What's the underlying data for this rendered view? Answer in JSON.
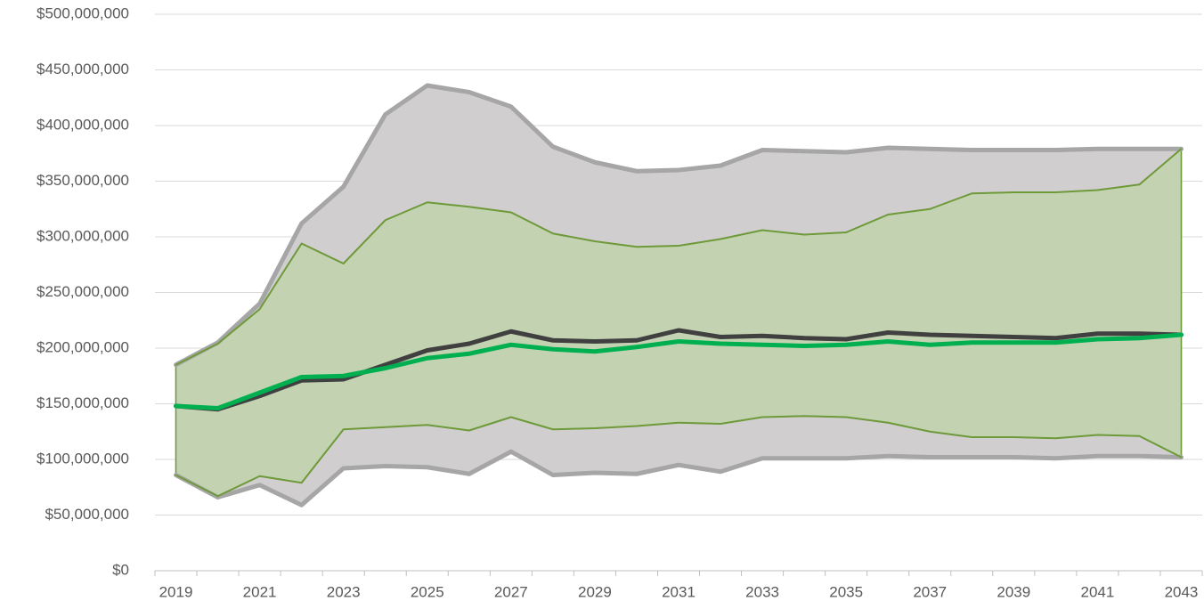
{
  "chart_data": {
    "type": "line",
    "categories": [
      "2019",
      null,
      "2021",
      null,
      "2023",
      null,
      "2025",
      null,
      "2027",
      null,
      "2029",
      null,
      "2031",
      null,
      "2033",
      null,
      "2035",
      null,
      "2037",
      null,
      "2039",
      null,
      "2041",
      null,
      "2043"
    ],
    "ylim": [
      0,
      500000000
    ],
    "yticks": [
      {
        "value": 0,
        "label": "$0"
      },
      {
        "value": 50000000,
        "label": "$50,000,000"
      },
      {
        "value": 100000000,
        "label": "$100,000,000"
      },
      {
        "value": 150000000,
        "label": "$150,000,000"
      },
      {
        "value": 200000000,
        "label": "$200,000,000"
      },
      {
        "value": 250000000,
        "label": "$250,000,000"
      },
      {
        "value": 300000000,
        "label": "$300,000,000"
      },
      {
        "value": 350000000,
        "label": "$350,000,000"
      },
      {
        "value": 400000000,
        "label": "$400,000,000"
      },
      {
        "value": 450000000,
        "label": "$450,000,000"
      },
      {
        "value": 500000000,
        "label": "$500,000,000"
      }
    ],
    "grid": true,
    "fills": [
      "#d0cecf",
      "#c3d3b2"
    ],
    "series": [
      {
        "color": "#a6a6a6",
        "width": 5,
        "values": [
          185000000,
          205000000,
          240000000,
          312000000,
          345000000,
          410000000,
          436000000,
          430000000,
          417000000,
          381000000,
          367000000,
          359000000,
          360000000,
          364000000,
          378000000,
          377000000,
          376000000,
          380000000,
          379000000,
          378000000,
          378000000,
          378000000,
          379000000,
          379000000,
          379000000
        ]
      },
      {
        "color": "#a6a6a6",
        "width": 5,
        "values": [
          86000000,
          66000000,
          77000000,
          59000000,
          92000000,
          94000000,
          93000000,
          87000000,
          107000000,
          86000000,
          88000000,
          87000000,
          95000000,
          89000000,
          101000000,
          101000000,
          101000000,
          103000000,
          102000000,
          102000000,
          102000000,
          101000000,
          103000000,
          103000000,
          102000000
        ]
      },
      {
        "color": "#6f9a3a",
        "width": 2,
        "values": [
          185000000,
          204000000,
          235000000,
          294000000,
          276000000,
          315000000,
          331000000,
          327000000,
          322000000,
          303000000,
          296000000,
          291000000,
          292000000,
          298000000,
          306000000,
          302000000,
          304000000,
          320000000,
          325000000,
          339000000,
          340000000,
          340000000,
          342000000,
          347000000,
          379000000
        ]
      },
      {
        "color": "#6f9a3a",
        "width": 2,
        "values": [
          86000000,
          67000000,
          85000000,
          79000000,
          127000000,
          129000000,
          131000000,
          126000000,
          138000000,
          127000000,
          128000000,
          130000000,
          133000000,
          132000000,
          138000000,
          139000000,
          138000000,
          133000000,
          125000000,
          120000000,
          120000000,
          119000000,
          122000000,
          121000000,
          102000000
        ]
      },
      {
        "color": "#404040",
        "width": 5,
        "values": [
          148000000,
          145000000,
          157000000,
          171000000,
          172000000,
          185000000,
          198000000,
          204000000,
          215000000,
          207000000,
          206000000,
          207000000,
          216000000,
          210000000,
          211000000,
          209000000,
          208000000,
          214000000,
          212000000,
          211000000,
          210000000,
          209000000,
          213000000,
          213000000,
          212000000
        ]
      },
      {
        "color": "#00b050",
        "width": 5,
        "values": [
          148000000,
          146000000,
          160000000,
          174000000,
          175000000,
          182000000,
          191000000,
          195000000,
          203000000,
          199000000,
          197000000,
          201000000,
          206000000,
          204000000,
          203000000,
          202000000,
          203000000,
          206000000,
          203000000,
          205000000,
          205000000,
          205000000,
          208000000,
          209000000,
          212000000
        ]
      }
    ]
  }
}
